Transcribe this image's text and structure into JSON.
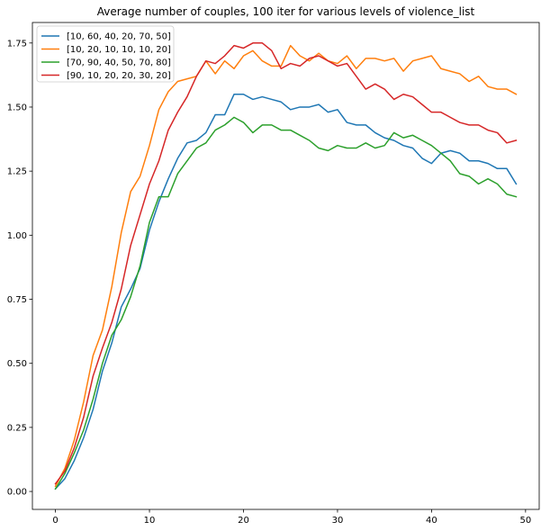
{
  "chart_data": {
    "type": "line",
    "title": "Average number of couples, 100 iter for various levels of violence_list",
    "xlabel": "",
    "ylabel": "",
    "xlim": [
      -2.45,
      51.45
    ],
    "ylim": [
      -0.07,
      1.83
    ],
    "xticks": [
      0,
      10,
      20,
      30,
      40,
      50
    ],
    "yticks": [
      0.0,
      0.25,
      0.5,
      0.75,
      1.0,
      1.25,
      1.5,
      1.75
    ],
    "grid": false,
    "legend_position": "upper left",
    "x": [
      0,
      1,
      2,
      3,
      4,
      5,
      6,
      7,
      8,
      9,
      10,
      11,
      12,
      13,
      14,
      15,
      16,
      17,
      18,
      19,
      20,
      21,
      22,
      23,
      24,
      25,
      26,
      27,
      28,
      29,
      30,
      31,
      32,
      33,
      34,
      35,
      36,
      37,
      38,
      39,
      40,
      41,
      42,
      43,
      44,
      45,
      46,
      47,
      48,
      49
    ],
    "series": [
      {
        "name": "[10, 60, 40, 20, 70, 50]",
        "color": "#1f77b4",
        "values": [
          0.01,
          0.05,
          0.12,
          0.21,
          0.32,
          0.47,
          0.58,
          0.72,
          0.79,
          0.87,
          1.02,
          1.13,
          1.22,
          1.3,
          1.36,
          1.37,
          1.4,
          1.47,
          1.47,
          1.55,
          1.55,
          1.53,
          1.54,
          1.53,
          1.52,
          1.49,
          1.5,
          1.5,
          1.51,
          1.48,
          1.49,
          1.44,
          1.43,
          1.43,
          1.4,
          1.38,
          1.37,
          1.35,
          1.34,
          1.3,
          1.28,
          1.32,
          1.33,
          1.32,
          1.29,
          1.29,
          1.28,
          1.26,
          1.26,
          1.2
        ]
      },
      {
        "name": "[10, 20, 10, 10, 10, 20]",
        "color": "#ff7f0e",
        "values": [
          0.02,
          0.09,
          0.2,
          0.35,
          0.53,
          0.63,
          0.8,
          1.01,
          1.17,
          1.23,
          1.35,
          1.49,
          1.56,
          1.6,
          1.61,
          1.62,
          1.68,
          1.63,
          1.68,
          1.65,
          1.7,
          1.72,
          1.68,
          1.66,
          1.66,
          1.74,
          1.7,
          1.68,
          1.71,
          1.68,
          1.67,
          1.7,
          1.65,
          1.69,
          1.69,
          1.68,
          1.69,
          1.64,
          1.68,
          1.69,
          1.7,
          1.65,
          1.64,
          1.63,
          1.6,
          1.62,
          1.58,
          1.57,
          1.57,
          1.55
        ]
      },
      {
        "name": "[70, 90, 40, 50, 70, 80]",
        "color": "#2ca02c",
        "values": [
          0.01,
          0.07,
          0.15,
          0.24,
          0.36,
          0.5,
          0.61,
          0.67,
          0.76,
          0.88,
          1.05,
          1.15,
          1.15,
          1.24,
          1.29,
          1.34,
          1.36,
          1.41,
          1.43,
          1.46,
          1.44,
          1.4,
          1.43,
          1.43,
          1.41,
          1.41,
          1.39,
          1.37,
          1.34,
          1.33,
          1.35,
          1.34,
          1.34,
          1.36,
          1.34,
          1.35,
          1.4,
          1.38,
          1.39,
          1.37,
          1.35,
          1.32,
          1.29,
          1.24,
          1.23,
          1.2,
          1.22,
          1.2,
          1.16,
          1.15
        ]
      },
      {
        "name": "[90, 10, 20, 20, 30, 20]",
        "color": "#d62728",
        "values": [
          0.03,
          0.08,
          0.17,
          0.29,
          0.45,
          0.56,
          0.66,
          0.79,
          0.96,
          1.08,
          1.2,
          1.29,
          1.41,
          1.48,
          1.54,
          1.62,
          1.68,
          1.67,
          1.7,
          1.74,
          1.73,
          1.75,
          1.75,
          1.72,
          1.65,
          1.67,
          1.66,
          1.69,
          1.7,
          1.68,
          1.66,
          1.67,
          1.62,
          1.57,
          1.59,
          1.57,
          1.53,
          1.55,
          1.54,
          1.51,
          1.48,
          1.48,
          1.46,
          1.44,
          1.43,
          1.43,
          1.41,
          1.4,
          1.36,
          1.37
        ]
      }
    ]
  }
}
